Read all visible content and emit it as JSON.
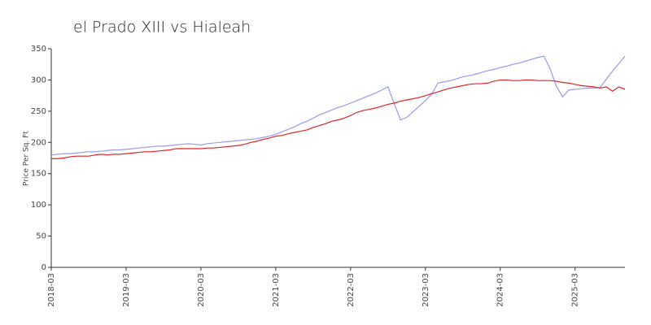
{
  "chart_data": {
    "type": "line",
    "title": "el Prado XIII vs Hialeah",
    "y_label": "Price Per Sq. Ft",
    "categories": [
      "2018-03",
      null,
      null,
      null,
      null,
      null,
      null,
      null,
      null,
      null,
      null,
      null,
      "2019-03",
      null,
      null,
      null,
      null,
      null,
      null,
      null,
      null,
      null,
      null,
      null,
      "2020-03",
      null,
      null,
      null,
      null,
      null,
      null,
      null,
      null,
      null,
      null,
      null,
      "2021-03",
      null,
      null,
      null,
      null,
      null,
      null,
      null,
      null,
      null,
      null,
      null,
      "2022-03",
      null,
      null,
      null,
      null,
      null,
      null,
      null,
      null,
      null,
      null,
      null,
      "2023-03",
      null,
      null,
      null,
      null,
      null,
      null,
      null,
      null,
      null,
      null,
      null,
      "2024-03",
      null,
      null,
      null,
      null,
      null,
      null,
      null,
      null,
      null,
      null,
      null,
      "2025-03",
      null,
      null,
      null,
      null,
      null,
      null,
      null,
      null
    ],
    "series": [
      {
        "color": "#9999ee",
        "values": [
          180,
          181,
          182,
          182,
          183,
          184,
          185,
          185,
          186,
          187,
          188,
          188,
          189,
          190,
          191,
          192,
          193,
          194,
          194,
          195,
          196,
          197,
          198,
          197,
          196,
          198,
          199,
          200,
          201,
          202,
          203,
          204,
          205,
          206,
          208,
          210,
          213,
          217,
          221,
          225,
          230,
          234,
          239,
          244,
          248,
          252,
          256,
          259,
          263,
          267,
          271,
          275,
          279,
          284,
          289,
          262,
          236,
          240,
          249,
          258,
          267,
          277,
          295,
          297,
          299,
          302,
          305,
          307,
          309,
          312,
          315,
          317,
          320,
          322,
          325,
          327,
          330,
          333,
          336,
          338,
          318,
          290,
          273,
          284,
          285,
          286,
          287,
          287,
          288,
          301,
          314,
          326,
          338
        ]
      },
      {
        "color": "#e02424",
        "values": [
          174,
          174,
          175,
          177,
          178,
          178,
          178,
          180,
          181,
          180,
          181,
          181,
          182,
          183,
          184,
          185,
          185,
          186,
          187,
          188,
          190,
          190,
          190,
          190,
          190,
          191,
          191,
          192,
          193,
          194,
          195,
          197,
          200,
          202,
          205,
          207,
          210,
          211,
          214,
          216,
          218,
          220,
          224,
          227,
          230,
          234,
          236,
          239,
          243,
          248,
          251,
          253,
          255,
          258,
          261,
          263,
          266,
          268,
          270,
          272,
          275,
          278,
          281,
          284,
          287,
          289,
          291,
          293,
          294,
          294,
          295,
          298,
          300,
          300,
          299,
          299,
          300,
          300,
          299,
          299,
          299,
          298,
          296,
          295,
          293,
          291,
          290,
          289,
          287,
          289,
          282,
          289,
          285
        ]
      }
    ],
    "ylim": [
      0,
      350
    ],
    "yticks": [
      0,
      50,
      100,
      150,
      200,
      250,
      300,
      350
    ],
    "grid": false
  }
}
